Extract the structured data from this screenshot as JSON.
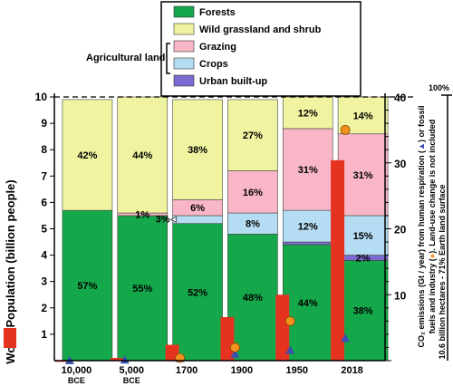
{
  "chart_data": {
    "type": "bar",
    "categories": [
      {
        "label": "10,000",
        "sub": "BCE"
      },
      {
        "label": "5,000",
        "sub": "BCE"
      },
      {
        "label": "1700",
        "sub": ""
      },
      {
        "label": "1900",
        "sub": ""
      },
      {
        "label": "1950",
        "sub": ""
      },
      {
        "label": "2018",
        "sub": ""
      }
    ],
    "land_series": [
      {
        "name": "Forests",
        "color": "#14a84a",
        "values": [
          57,
          55,
          52,
          48,
          44,
          38
        ],
        "labels": [
          "57%",
          "55%",
          "52%",
          "48%",
          "44%",
          "38%"
        ]
      },
      {
        "name": "Urban built-up",
        "color": "#7b6bd0",
        "values": [
          0,
          0,
          0,
          0,
          1,
          2
        ],
        "labels": [
          "",
          "",
          "",
          "",
          "",
          "2%"
        ]
      },
      {
        "name": "Crops",
        "color": "#b4dcf2",
        "values": [
          0,
          0,
          3,
          8,
          12,
          15
        ],
        "labels": [
          "",
          "",
          "3%",
          "8%",
          "12%",
          "15%"
        ]
      },
      {
        "name": "Grazing",
        "color": "#f9b6c6",
        "values": [
          0,
          1,
          6,
          16,
          31,
          31
        ],
        "labels": [
          "",
          "1%",
          "6%",
          "16%",
          "31%",
          "31%"
        ]
      },
      {
        "name": "Wild grassland and shrub",
        "color": "#f0f4a0",
        "values": [
          42,
          44,
          38,
          27,
          12,
          14
        ],
        "labels": [
          "42%",
          "44%",
          "38%",
          "27%",
          "12%",
          "14%"
        ]
      }
    ],
    "population": {
      "color": "#e53320",
      "values": [
        0.004,
        0.1,
        0.6,
        1.65,
        2.5,
        7.6
      ]
    },
    "co2_respiration": {
      "color": "#3a4fb0",
      "values": [
        0.01,
        0.1,
        0.35,
        1.0,
        1.6,
        3.4
      ]
    },
    "co2_fossil": {
      "color": "#f2921c",
      "values": [
        null,
        null,
        0.4,
        2.0,
        6.0,
        35.0
      ]
    },
    "legend": {
      "forests": "Forests",
      "wild": "Wild grassland and shrub",
      "grazing": "Grazing",
      "crops": "Crops",
      "urban": "Urban built-up",
      "agri_group": "Agricultural land"
    },
    "axes": {
      "left_label": "World Population (billion people)",
      "left_ticks": [
        "1",
        "2",
        "3",
        "4",
        "5",
        "6",
        "7",
        "8",
        "9",
        "10"
      ],
      "left_range": [
        0,
        10
      ],
      "right_ticks": [
        "10",
        "20",
        "30",
        "40"
      ],
      "right_range": [
        0,
        40
      ],
      "right_label_line1": "CO₂ emissions (Gt / year) from human respiration (",
      "right_label_line1b": ") or fossil",
      "right_label_line2": "fuels  and industry (",
      "right_label_line2b": "). Land-use change is not included",
      "far_label": "10.6 billion hectares - 71% Earth land surface",
      "far_top": "100%"
    }
  }
}
